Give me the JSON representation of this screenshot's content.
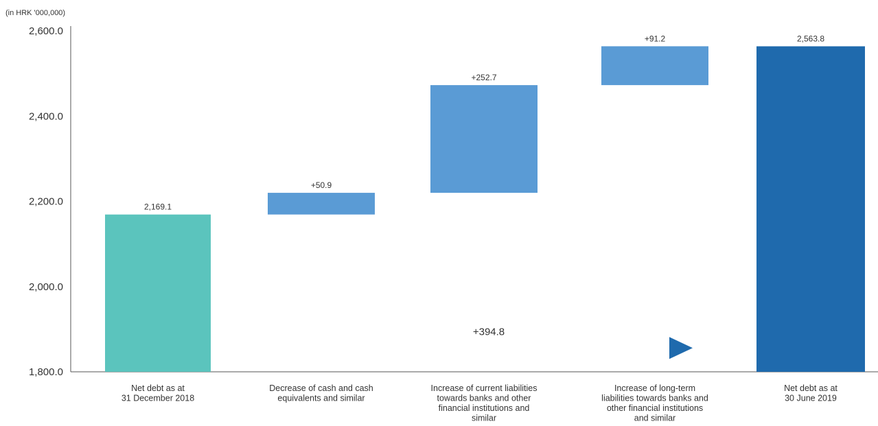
{
  "chart_data": {
    "type": "bar",
    "subtype": "waterfall",
    "unit_label": "(in HRK '000,000)",
    "ylim": [
      1800,
      2600
    ],
    "y_ticks": [
      "1,800.0",
      "2,000.0",
      "2,200.0",
      "2,400.0",
      "2,600.0"
    ],
    "y_tick_values": [
      1800,
      2000,
      2200,
      2400,
      2600
    ],
    "grid": false,
    "legend": "none",
    "bars": [
      {
        "category": [
          "Net debt as at",
          "31 December 2018"
        ],
        "kind": "total",
        "start": 1800,
        "end": 2169.1,
        "label": "2,169.1",
        "color": "#5bc4bd"
      },
      {
        "category": [
          "Decrease of cash and cash",
          "equivalents and similar"
        ],
        "kind": "delta",
        "start": 2169.1,
        "end": 2220.0,
        "label": "+50.9",
        "color": "#5a9bd5"
      },
      {
        "category": [
          "Increase of current liabilities",
          "towards banks and other",
          "financial institutions and",
          "similar"
        ],
        "kind": "delta",
        "start": 2220.0,
        "end": 2472.7,
        "label": "+252.7",
        "color": "#5a9bd5"
      },
      {
        "category": [
          "Increase of long-term",
          "liabilities towards banks and",
          "other financial institutions",
          "and similar"
        ],
        "kind": "delta",
        "start": 2472.7,
        "end": 2563.9,
        "label": "+91.2",
        "color": "#5a9bd5"
      },
      {
        "category": [
          "Net debt as at",
          "30 June 2019"
        ],
        "kind": "total",
        "start": 1800,
        "end": 2563.8,
        "label": "2,563.8",
        "color": "#1f6aad"
      }
    ],
    "total_change": {
      "label": "+394.8",
      "value": 394.8,
      "y": 1880,
      "from_color": "#7a7a7a",
      "to_color": "#1f6aad"
    }
  }
}
